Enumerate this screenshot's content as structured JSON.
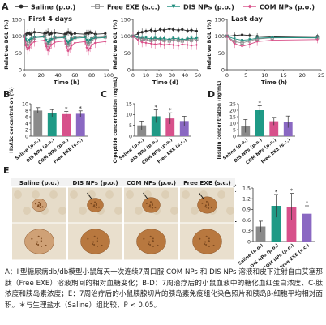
{
  "panel_letters": [
    "A",
    "B",
    "C",
    "D",
    "E"
  ],
  "legend": [
    {
      "label": "Saline (p.o.)",
      "color": "#2b2b2b",
      "marker": "circle"
    },
    {
      "label": "Free EXE (s.c.)",
      "color": "#8c8c8c",
      "marker": "square"
    },
    {
      "label": "DIS NPs (p.o.)",
      "color": "#1c8c7c",
      "marker": "triangle-down"
    },
    {
      "label": "COM NPs (p.o.)",
      "color": "#d94f88",
      "marker": "diamond"
    }
  ],
  "colors": {
    "saline_bar": "#8a8a8a",
    "dis_bar": "#1f9a86",
    "com_bar": "#d7518b",
    "free_bar": "#8a68c2"
  },
  "tissue_images": {
    "column_labels": [
      "Saline (p.o.)",
      "DIS NPs (p.o.)",
      "COM NPs (p.o.)",
      "Free EXE (s.c.)"
    ]
  },
  "caption": "A：Ⅱ型糖尿病db/db模型小鼠每天一次连续7周口服 COM NPs 和 DIS NPs 溶液和皮下注射自由艾塞那肽（Free EXE）溶液期间的相对血糖变化；B-D：7周治疗后的小鼠血液中的糖化血红蛋白浓度、C-肽浓度和胰岛素浓度；E：7周治疗后的小鼠胰腺切片的胰岛素免疫组化染色照片和胰岛β-细胞平均相对面积。＊与生理盐水（Saline）组比较，P < 0.05。",
  "chart_data": [
    {
      "id": "A1",
      "type": "line",
      "title": "First 4 days",
      "xlabel": "Time (h)",
      "ylabel": "Relative BGL (%)",
      "xlim": [
        0,
        100
      ],
      "ylim": [
        0,
        150
      ],
      "xticks": [
        0,
        20,
        40,
        60,
        80,
        100
      ],
      "yticks": [
        0,
        50,
        100,
        150
      ],
      "x": [
        0,
        2,
        4,
        6,
        8,
        12,
        24,
        26,
        28,
        30,
        32,
        36,
        48,
        50,
        52,
        54,
        56,
        60,
        72,
        74,
        76,
        78,
        80,
        84,
        96
      ],
      "series": [
        {
          "name": "Saline (p.o.)",
          "values": [
            100,
            105,
            110,
            108,
            106,
            112,
            108,
            110,
            112,
            106,
            108,
            110,
            106,
            108,
            112,
            110,
            106,
            108,
            106,
            110,
            108,
            112,
            110,
            106,
            108
          ]
        },
        {
          "name": "Free EXE (s.c.)",
          "values": [
            100,
            80,
            70,
            78,
            88,
            95,
            100,
            82,
            72,
            80,
            90,
            96,
            98,
            80,
            74,
            82,
            92,
            96,
            100,
            84,
            76,
            84,
            92,
            96,
            98
          ]
        },
        {
          "name": "DIS NPs (p.o.)",
          "values": [
            100,
            90,
            84,
            88,
            92,
            96,
            98,
            88,
            82,
            86,
            90,
            94,
            96,
            86,
            80,
            86,
            90,
            94,
            96,
            88,
            84,
            88,
            92,
            94,
            96
          ]
        },
        {
          "name": "COM NPs (p.o.)",
          "values": [
            100,
            72,
            60,
            66,
            76,
            84,
            88,
            70,
            58,
            64,
            74,
            82,
            86,
            68,
            56,
            62,
            72,
            80,
            84,
            66,
            58,
            64,
            74,
            80,
            84
          ]
        }
      ]
    },
    {
      "id": "A2",
      "type": "line",
      "xlabel": "Time (d)",
      "ylabel": "Relative BGL (%)",
      "xlim": [
        0,
        50
      ],
      "ylim": [
        0,
        150
      ],
      "xticks": [
        0,
        10,
        20,
        30,
        40,
        50
      ],
      "yticks": [
        0,
        50,
        100,
        150
      ],
      "x": [
        0,
        4,
        7,
        10,
        14,
        17,
        21,
        24,
        28,
        31,
        35,
        38,
        42,
        45,
        49
      ],
      "series": [
        {
          "name": "Saline (p.o.)",
          "values": [
            100,
            108,
            112,
            115,
            118,
            115,
            120,
            118,
            122,
            120,
            118,
            120,
            116,
            118,
            115
          ]
        },
        {
          "name": "Free EXE (s.c.)",
          "values": [
            100,
            95,
            92,
            90,
            88,
            92,
            90,
            88,
            86,
            90,
            88,
            86,
            90,
            88,
            92
          ]
        },
        {
          "name": "DIS NPs (p.o.)",
          "values": [
            100,
            96,
            94,
            95,
            92,
            94,
            92,
            93,
            90,
            94,
            92,
            90,
            92,
            94,
            93
          ]
        },
        {
          "name": "COM NPs (p.o.)",
          "values": [
            100,
            88,
            82,
            80,
            78,
            76,
            78,
            74,
            76,
            74,
            72,
            76,
            74,
            72,
            74
          ]
        }
      ]
    },
    {
      "id": "A3",
      "type": "line",
      "title": "Last day",
      "xlabel": "Time (h)",
      "ylabel": "Relative BGL (%)",
      "xlim": [
        0,
        25
      ],
      "ylim": [
        0,
        150
      ],
      "xticks": [
        0,
        5,
        10,
        15,
        20,
        25
      ],
      "yticks": [
        0,
        50,
        100,
        150
      ],
      "x": [
        0,
        2,
        4,
        6,
        8,
        12,
        24
      ],
      "series": [
        {
          "name": "Saline (p.o.)",
          "values": [
            100,
            102,
            104,
            102,
            100,
            98,
            100
          ]
        },
        {
          "name": "Free EXE (s.c.)",
          "values": [
            100,
            84,
            80,
            86,
            92,
            95,
            96
          ]
        },
        {
          "name": "DIS NPs (p.o.)",
          "values": [
            100,
            92,
            88,
            90,
            94,
            96,
            95
          ]
        },
        {
          "name": "COM NPs (p.o.)",
          "values": [
            100,
            78,
            70,
            76,
            84,
            88,
            90
          ]
        }
      ]
    },
    {
      "id": "B",
      "type": "bar",
      "ylabel": "HbA1c concentration (%)",
      "ylim": [
        0,
        10
      ],
      "yticks": [
        0,
        2,
        4,
        6,
        8,
        10
      ],
      "categories": [
        "Saline (p.o.)",
        "DIS NPs (p.o.)",
        "COM NPs (p.o.)",
        "Free EXE (s.c.)"
      ],
      "values": [
        7.9,
        7.1,
        6.8,
        6.9
      ],
      "errors": [
        0.9,
        1.1,
        0.8,
        0.9
      ],
      "significant": [
        false,
        false,
        true,
        true
      ]
    },
    {
      "id": "C",
      "type": "bar",
      "ylabel": "C-peptide concentration (ng/mL)",
      "ylim": [
        0,
        15
      ],
      "yticks": [
        0,
        5,
        10,
        15
      ],
      "categories": [
        "Saline (p.o.)",
        "DIS NPs (p.o.)",
        "COM NPs (p.o.)",
        "Free EXE (s.c.)"
      ],
      "values": [
        5.0,
        9.2,
        8.2,
        7.0
      ],
      "errors": [
        2.0,
        3.0,
        2.6,
        2.2
      ],
      "significant": [
        false,
        true,
        true,
        false
      ]
    },
    {
      "id": "D",
      "type": "bar",
      "ylabel": "Insulin concentration (ng/mL)",
      "ylim": [
        0,
        25
      ],
      "yticks": [
        0,
        5,
        10,
        15,
        20,
        25
      ],
      "categories": [
        "Saline (p.o.)",
        "DIS NPs (p.o.)",
        "COM NPs (p.o.)",
        "Free EXE (s.c.)"
      ],
      "values": [
        7.8,
        20.0,
        11.5,
        11.0
      ],
      "errors": [
        5.0,
        3.5,
        3.0,
        4.5
      ],
      "significant": [
        false,
        true,
        false,
        false
      ]
    },
    {
      "id": "E",
      "type": "bar",
      "ylabel": "Relative β-cell area (%)",
      "ylim": [
        0,
        1.5
      ],
      "yticks": [
        0,
        0.3,
        0.6,
        0.9,
        1.2,
        1.5
      ],
      "categories": [
        "Saline (p.o.)",
        "DIS NPs (p.o.)",
        "COM NPs (p.o.)",
        "Free EXE (s.c.)"
      ],
      "values": [
        0.42,
        1.0,
        0.97,
        0.78
      ],
      "errors": [
        0.15,
        0.32,
        0.38,
        0.22
      ],
      "significant": [
        false,
        true,
        true,
        true
      ]
    }
  ]
}
